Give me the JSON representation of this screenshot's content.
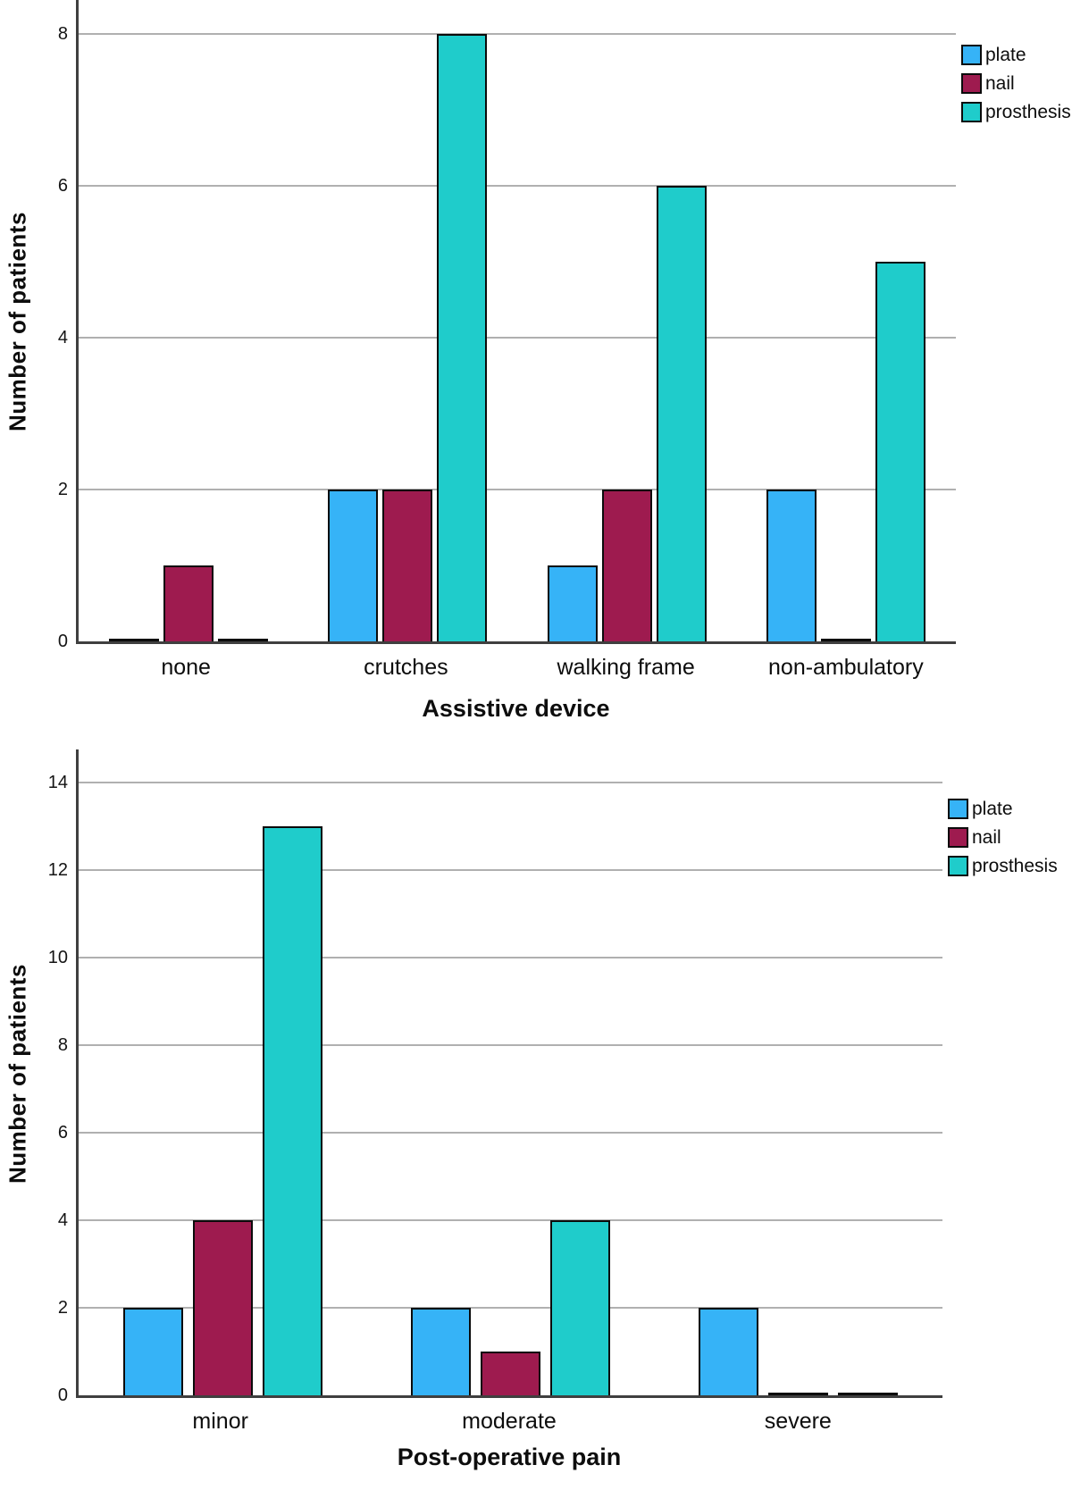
{
  "figure": {
    "background": "#FFFFFF",
    "axis_color": "#3F3F3F",
    "gridline_color": "#B0B0B0",
    "bar_border_color": "#0B0B0B"
  },
  "chart_data": [
    {
      "type": "bar",
      "title": "",
      "xlabel": "Assistive device",
      "ylabel": "Number of patients",
      "categories": [
        "none",
        "crutches",
        "walking frame",
        "non-ambulatory"
      ],
      "series": [
        {
          "name": "plate",
          "color": "#36B3F7",
          "values": [
            0,
            2,
            1,
            2
          ]
        },
        {
          "name": "nail",
          "color": "#9E1B4F",
          "values": [
            1,
            2,
            2,
            0
          ]
        },
        {
          "name": "prosthesis",
          "color": "#1FCCCB",
          "values": [
            0,
            8,
            6,
            5
          ]
        }
      ],
      "yticks": [
        0,
        2,
        4,
        6,
        8
      ],
      "ylim": [
        0,
        8.48
      ],
      "grid": true,
      "legend_position": "right-top"
    },
    {
      "type": "bar",
      "title": "",
      "xlabel": "Post-operative pain",
      "ylabel": "Number of patients",
      "categories": [
        "minor",
        "moderate",
        "severe"
      ],
      "series": [
        {
          "name": "plate",
          "color": "#36B3F7",
          "values": [
            2,
            2,
            2
          ]
        },
        {
          "name": "nail",
          "color": "#9E1B4F",
          "values": [
            4,
            1,
            0
          ]
        },
        {
          "name": "prosthesis",
          "color": "#1FCCCB",
          "values": [
            13,
            4,
            0
          ]
        }
      ],
      "yticks": [
        0,
        2,
        4,
        6,
        8,
        10,
        12,
        14
      ],
      "ylim": [
        0,
        14.82
      ],
      "grid": true,
      "legend_position": "right-top"
    }
  ]
}
